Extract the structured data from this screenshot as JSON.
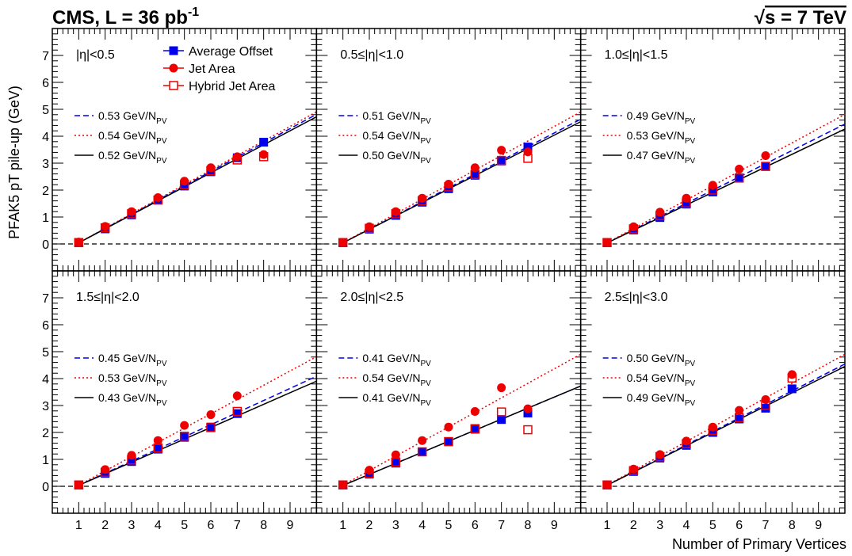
{
  "header": {
    "left_prefix": "CMS, L = 36 pb",
    "left_exp": "-1",
    "right_sqrt": "√",
    "right_text": "s = 7 TeV"
  },
  "axis_labels": {
    "y_label": "PFAK5 pT pile-up (GeV)",
    "x_label": "Number of Primary Vertices"
  },
  "legend": {
    "markers": [
      "Average Offset",
      "Jet Area",
      "Hybrid Jet Area"
    ],
    "fit_unit_main": "GeV/N",
    "fit_unit_sub": "PV"
  },
  "colors": {
    "average_offset": "#0000ee",
    "jet_area": "#ee0000",
    "hybrid_jet_area": "#ee0000",
    "fit_average_offset": "#0000ee",
    "fit_jet_area": "#ee0000",
    "fit_hybrid": "#000000"
  },
  "chart_data": [
    {
      "type": "scatter",
      "label": "|η|<0.5",
      "xlim": [
        0,
        10
      ],
      "ylim": [
        -1,
        8
      ],
      "x": [
        1,
        2,
        3,
        4,
        5,
        6,
        7,
        8
      ],
      "series": [
        {
          "name": "Average Offset",
          "values": [
            0.05,
            0.56,
            1.08,
            1.63,
            2.15,
            2.68,
            3.2,
            3.78
          ]
        },
        {
          "name": "Jet Area",
          "values": [
            0.07,
            0.65,
            1.2,
            1.72,
            2.33,
            2.83,
            3.24,
            3.32
          ]
        },
        {
          "name": "Hybrid Jet Area",
          "values": [
            0.05,
            0.6,
            1.12,
            1.63,
            2.2,
            2.72,
            3.12,
            3.24
          ]
        }
      ],
      "fits": [
        {
          "label": "0.53",
          "slope": 0.53
        },
        {
          "label": "0.54",
          "slope": 0.54
        },
        {
          "label": "0.52",
          "slope": 0.52
        }
      ]
    },
    {
      "type": "scatter",
      "label": "0.5≤|η|<1.0",
      "xlim": [
        0,
        10
      ],
      "ylim": [
        -1,
        8
      ],
      "x": [
        1,
        2,
        3,
        4,
        5,
        6,
        7,
        8
      ],
      "series": [
        {
          "name": "Average Offset",
          "values": [
            0.05,
            0.55,
            1.06,
            1.55,
            2.05,
            2.55,
            3.08,
            3.6
          ]
        },
        {
          "name": "Jet Area",
          "values": [
            0.06,
            0.64,
            1.2,
            1.7,
            2.22,
            2.83,
            3.48,
            3.42
          ]
        },
        {
          "name": "Hybrid Jet Area",
          "values": [
            0.05,
            0.58,
            1.12,
            1.6,
            2.12,
            2.58,
            3.1,
            3.18
          ]
        }
      ],
      "fits": [
        {
          "label": "0.51",
          "slope": 0.51
        },
        {
          "label": "0.54",
          "slope": 0.54
        },
        {
          "label": "0.50",
          "slope": 0.5
        }
      ]
    },
    {
      "type": "scatter",
      "label": "1.0≤|η|<1.5",
      "xlim": [
        0,
        10
      ],
      "ylim": [
        -1,
        8
      ],
      "x": [
        1,
        2,
        3,
        4,
        5,
        6,
        7
      ],
      "series": [
        {
          "name": "Average Offset",
          "values": [
            0.05,
            0.52,
            0.98,
            1.48,
            1.93,
            2.44,
            2.88
          ]
        },
        {
          "name": "Jet Area",
          "values": [
            0.06,
            0.64,
            1.18,
            1.7,
            2.18,
            2.78,
            3.28
          ]
        },
        {
          "name": "Hybrid Jet Area",
          "values": [
            0.05,
            0.56,
            1.05,
            1.52,
            2.0,
            2.45,
            2.88
          ]
        }
      ],
      "fits": [
        {
          "label": "0.49",
          "slope": 0.49
        },
        {
          "label": "0.53",
          "slope": 0.53
        },
        {
          "label": "0.47",
          "slope": 0.47
        }
      ]
    },
    {
      "type": "scatter",
      "label": "1.5≤|η|<2.0",
      "xlim": [
        0,
        10
      ],
      "ylim": [
        -1,
        8
      ],
      "x": [
        1,
        2,
        3,
        4,
        5,
        6,
        7
      ],
      "series": [
        {
          "name": "Average Offset",
          "values": [
            0.05,
            0.48,
            0.92,
            1.38,
            1.82,
            2.2,
            2.7
          ]
        },
        {
          "name": "Jet Area",
          "values": [
            0.06,
            0.62,
            1.15,
            1.7,
            2.26,
            2.66,
            3.36
          ]
        },
        {
          "name": "Hybrid Jet Area",
          "values": [
            0.05,
            0.52,
            0.98,
            1.42,
            1.86,
            2.18,
            2.78
          ]
        }
      ],
      "fits": [
        {
          "label": "0.45",
          "slope": 0.45
        },
        {
          "label": "0.53",
          "slope": 0.53
        },
        {
          "label": "0.43",
          "slope": 0.43
        }
      ]
    },
    {
      "type": "scatter",
      "label": "2.0≤|η|<2.5",
      "xlim": [
        0,
        10
      ],
      "ylim": [
        -1,
        8
      ],
      "x": [
        1,
        2,
        3,
        4,
        5,
        6,
        7,
        8
      ],
      "series": [
        {
          "name": "Average Offset",
          "values": [
            0.05,
            0.45,
            0.86,
            1.28,
            1.66,
            2.12,
            2.48,
            2.72
          ]
        },
        {
          "name": "Jet Area",
          "values": [
            0.06,
            0.6,
            1.17,
            1.7,
            2.2,
            2.78,
            3.66,
            2.88
          ]
        },
        {
          "name": "Hybrid Jet Area",
          "values": [
            0.05,
            0.48,
            0.9,
            1.28,
            1.66,
            2.14,
            2.76,
            2.1
          ]
        }
      ],
      "fits": [
        {
          "label": "0.41",
          "slope": 0.41
        },
        {
          "label": "0.54",
          "slope": 0.54
        },
        {
          "label": "0.41",
          "slope": 0.41
        }
      ]
    },
    {
      "type": "scatter",
      "label": "2.5≤|η|<3.0",
      "xlim": [
        0,
        10
      ],
      "ylim": [
        -1,
        8
      ],
      "x": [
        1,
        2,
        3,
        4,
        5,
        6,
        7,
        8
      ],
      "series": [
        {
          "name": "Average Offset",
          "values": [
            0.05,
            0.55,
            1.05,
            1.52,
            2.0,
            2.5,
            2.9,
            3.62
          ]
        },
        {
          "name": "Jet Area",
          "values": [
            0.06,
            0.64,
            1.18,
            1.68,
            2.2,
            2.82,
            3.22,
            4.15
          ]
        },
        {
          "name": "Hybrid Jet Area",
          "values": [
            0.05,
            0.58,
            1.1,
            1.58,
            2.08,
            2.55,
            3.0,
            4.02
          ]
        }
      ],
      "fits": [
        {
          "label": "0.50",
          "slope": 0.5
        },
        {
          "label": "0.54",
          "slope": 0.54
        },
        {
          "label": "0.49",
          "slope": 0.49
        }
      ]
    }
  ]
}
